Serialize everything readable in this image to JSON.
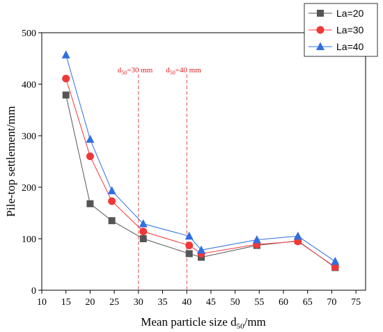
{
  "chart_data": {
    "type": "line",
    "title": "",
    "xlabel": "Mean particle size d",
    "xlabel_sub": "50",
    "xlabel_unit": "/mm",
    "ylabel": "Pile-top settlement/mm",
    "xlim": [
      10,
      77
    ],
    "ylim": [
      0,
      500
    ],
    "xticks": [
      "10",
      "15",
      "20",
      "25",
      "30",
      "35",
      "40",
      "45",
      "50",
      "55",
      "60",
      "65",
      "70",
      "75"
    ],
    "yticks": [
      "0",
      "100",
      "200",
      "300",
      "400",
      "500"
    ],
    "legend_position": "top-right",
    "grid": false,
    "series": [
      {
        "name": "La=20",
        "color": "#555555",
        "marker": "square",
        "x": [
          15,
          20,
          24.5,
          31,
          40.5,
          43,
          54.5,
          63,
          70.7
        ],
        "y": [
          379,
          168,
          135,
          100,
          71,
          64,
          87,
          96,
          44
        ]
      },
      {
        "name": "La=30",
        "color": "#f03838",
        "marker": "circle",
        "x": [
          15,
          20,
          24.5,
          31,
          40.5,
          43,
          54.5,
          63,
          70.7
        ],
        "y": [
          411,
          260,
          173,
          114,
          87,
          71,
          89,
          95,
          45
        ]
      },
      {
        "name": "La=40",
        "color": "#2f6fe0",
        "marker": "triangle",
        "x": [
          15,
          20,
          24.5,
          31,
          40.5,
          43,
          54.5,
          63,
          70.7
        ],
        "y": [
          457,
          293,
          193,
          129,
          105,
          78,
          98,
          105,
          56
        ]
      }
    ],
    "annotations": [
      {
        "x": 30,
        "label_main": "d",
        "label_sub": "50",
        "label_rest": "=30 mm"
      },
      {
        "x": 40,
        "label_main": "d",
        "label_sub": "50",
        "label_rest": "=40 mm"
      }
    ]
  }
}
